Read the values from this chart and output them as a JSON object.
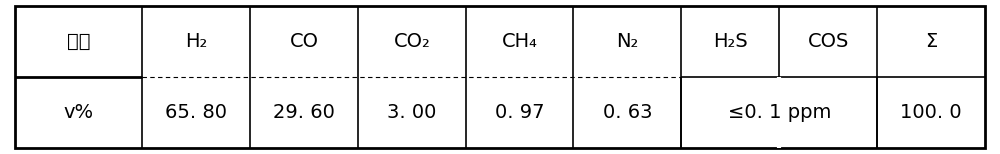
{
  "headers": [
    "组成",
    "H₂",
    "CO",
    "CO₂",
    "CH₄",
    "N₂",
    "H₂S",
    "COS",
    "Σ"
  ],
  "values": [
    "v%",
    "65. 80",
    "29. 60",
    "3. 00",
    "0. 97",
    "0. 63",
    "≤0. 1 ppm",
    "100. 0"
  ],
  "background_color": "#ffffff",
  "border_color": "#000000",
  "text_color": "#000000",
  "header_fontsize": 14,
  "value_fontsize": 14,
  "figsize": [
    10.0,
    1.54
  ],
  "dpi": 100,
  "col_ratios": [
    1.3,
    1.1,
    1.1,
    1.1,
    1.1,
    1.1,
    1.0,
    1.0,
    1.1
  ],
  "outer_lw": 2.0,
  "inner_lw": 1.2,
  "dashed_lw": 0.8
}
